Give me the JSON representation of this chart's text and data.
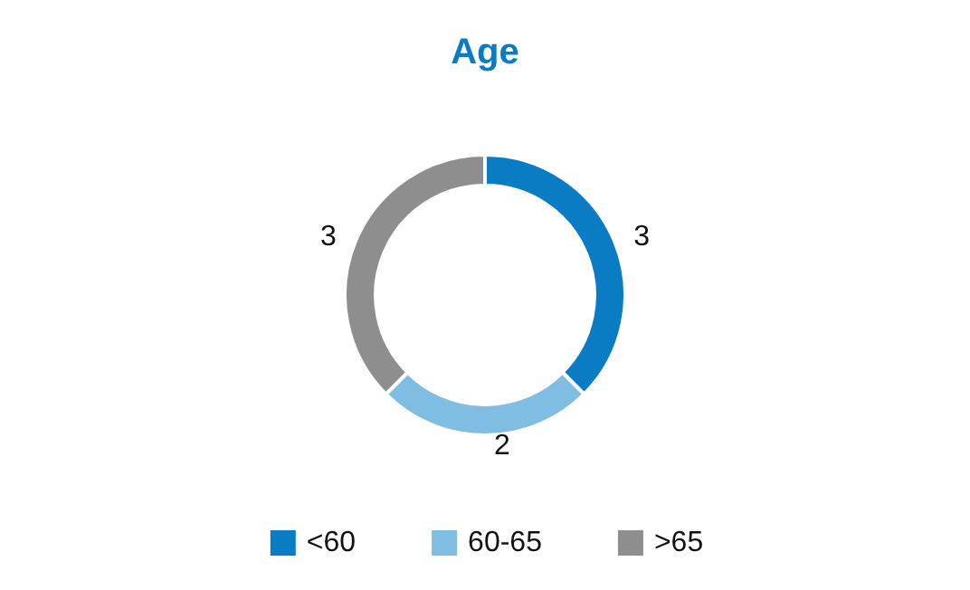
{
  "chart_data": {
    "type": "donut",
    "title": "Age",
    "categories": [
      "<60",
      "60-65",
      ">65"
    ],
    "values": [
      3,
      2,
      3
    ],
    "colors": [
      "#0a7cc3",
      "#80bde3",
      "#8e8e8e"
    ],
    "data_labels": true,
    "legend": "bottom"
  }
}
